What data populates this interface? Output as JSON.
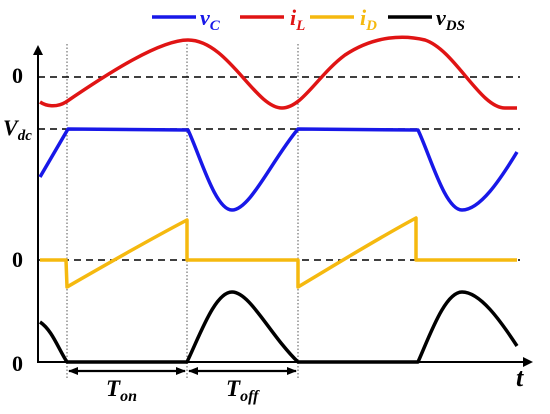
{
  "legend": [
    {
      "key": "vc",
      "base": "v",
      "sub": "C",
      "color": "#1818e8"
    },
    {
      "key": "il",
      "base": "i",
      "sub": "L",
      "color": "#e01414"
    },
    {
      "key": "id",
      "base": "i",
      "sub": "D",
      "color": "#f5b90f"
    },
    {
      "key": "vds",
      "base": "v",
      "sub": "DS",
      "color": "#000000"
    }
  ],
  "axis": {
    "t_label": "t"
  },
  "levels": {
    "zero_top": "0",
    "vdc_base": "V",
    "vdc_sub": "dc",
    "zero_mid": "0",
    "zero_bottom": "0"
  },
  "intervals": {
    "ton_base": "T",
    "ton_sub": "on",
    "toff_base": "T",
    "toff_sub": "off"
  }
}
